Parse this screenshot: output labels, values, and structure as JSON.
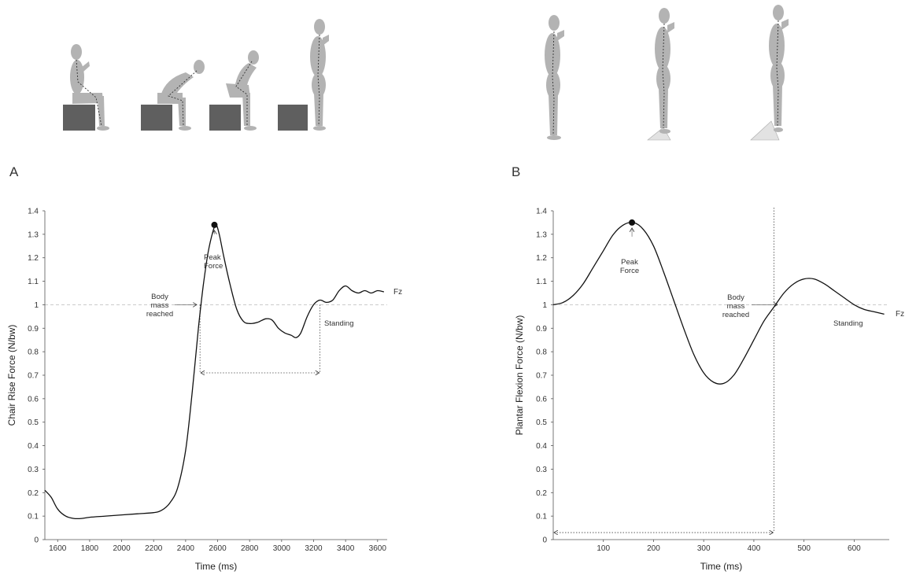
{
  "panels": [
    {
      "letter": "A"
    },
    {
      "letter": "B"
    }
  ],
  "chart_data": [
    {
      "type": "line",
      "xlabel": "Time (ms)",
      "ylabel": "Chair Rise Force (N/bw)",
      "xlim": [
        1520,
        3660
      ],
      "ylim": [
        0,
        1.4
      ],
      "x_ticks": [
        1600,
        1800,
        2000,
        2200,
        2400,
        2600,
        2800,
        3000,
        3200,
        3400,
        3600
      ],
      "y_ticks": [
        0,
        0.1,
        0.2,
        0.3,
        0.4,
        0.5,
        0.6,
        0.7,
        0.8,
        0.9,
        1,
        1.1,
        1.2,
        1.3,
        1.4
      ],
      "y_tick_labels": [
        "0",
        "0.1",
        "0.2",
        "0.3",
        "0.4",
        "0.5",
        "0.6",
        "0.7",
        "0.8",
        "0.9",
        "1",
        "1.1",
        "1.2",
        "1.3",
        "1.4"
      ],
      "series": [
        {
          "name": "Fz",
          "x": [
            1520,
            1560,
            1600,
            1650,
            1700,
            1750,
            1800,
            1900,
            2000,
            2100,
            2200,
            2250,
            2300,
            2350,
            2400,
            2440,
            2480,
            2510,
            2540,
            2570,
            2590,
            2610,
            2640,
            2680,
            2720,
            2760,
            2800,
            2850,
            2900,
            2940,
            2980,
            3020,
            3060,
            3090,
            3120,
            3160,
            3200,
            3240,
            3280,
            3320,
            3360,
            3400,
            3440,
            3480,
            3520,
            3560,
            3600,
            3640
          ],
          "y": [
            0.21,
            0.18,
            0.13,
            0.1,
            0.09,
            0.09,
            0.095,
            0.1,
            0.105,
            0.11,
            0.115,
            0.125,
            0.155,
            0.22,
            0.38,
            0.62,
            0.9,
            1.08,
            1.22,
            1.31,
            1.34,
            1.3,
            1.2,
            1.08,
            0.98,
            0.93,
            0.92,
            0.925,
            0.94,
            0.935,
            0.9,
            0.88,
            0.87,
            0.86,
            0.88,
            0.95,
            1.0,
            1.02,
            1.01,
            1.02,
            1.06,
            1.08,
            1.06,
            1.05,
            1.06,
            1.05,
            1.06,
            1.055
          ]
        }
      ],
      "reference_line_y": 1,
      "peak_point": {
        "x": 2580,
        "y": 1.34
      },
      "vertical_markers_x": [
        2490,
        3240
      ],
      "interval_arrow": {
        "x_start": 2490,
        "x_end": 3240,
        "y": 0.71
      },
      "annotations": [
        {
          "text": "Peak\nForce"
        },
        {
          "text": "Body\nmass\nreached"
        },
        {
          "text": "Standing"
        }
      ]
    },
    {
      "type": "line",
      "xlabel": "Time (ms)",
      "ylabel": "Plantar Flexion Force (N/bw)",
      "xlim": [
        0,
        670
      ],
      "ylim": [
        0,
        1.4
      ],
      "x_ticks": [
        100,
        200,
        300,
        400,
        500,
        600
      ],
      "y_ticks": [
        0,
        0.1,
        0.2,
        0.3,
        0.4,
        0.5,
        0.6,
        0.7,
        0.8,
        0.9,
        1,
        1.1,
        1.2,
        1.3,
        1.4
      ],
      "y_tick_labels": [
        "0",
        "0.1",
        "0.2",
        "0.3",
        "0.4",
        "0.5",
        "0.6",
        "0.7",
        "0.8",
        "0.9",
        "1",
        "1.1",
        "1.2",
        "1.3",
        "1.4"
      ],
      "series": [
        {
          "name": "Fz",
          "x": [
            0,
            20,
            40,
            60,
            80,
            100,
            120,
            140,
            160,
            180,
            200,
            220,
            240,
            260,
            280,
            300,
            320,
            340,
            360,
            380,
            400,
            420,
            440,
            460,
            480,
            500,
            520,
            540,
            560,
            580,
            600,
            620,
            640,
            660
          ],
          "y": [
            1.0,
            1.01,
            1.04,
            1.09,
            1.16,
            1.23,
            1.3,
            1.34,
            1.35,
            1.32,
            1.25,
            1.14,
            1.02,
            0.9,
            0.79,
            0.71,
            0.67,
            0.665,
            0.7,
            0.77,
            0.85,
            0.93,
            0.99,
            1.05,
            1.09,
            1.11,
            1.11,
            1.09,
            1.06,
            1.03,
            1.0,
            0.98,
            0.97,
            0.96
          ]
        }
      ],
      "reference_line_y": 1,
      "peak_point": {
        "x": 157,
        "y": 1.35
      },
      "vertical_markers_x": [
        440
      ],
      "interval_arrow": {
        "x_start": 0,
        "x_end": 440,
        "y": 0.03
      },
      "annotations": [
        {
          "text": "Peak\nForce"
        },
        {
          "text": "Body\nmass\nreached"
        },
        {
          "text": "Standing"
        }
      ]
    }
  ]
}
